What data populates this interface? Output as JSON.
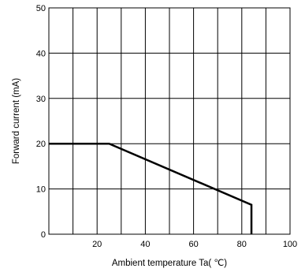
{
  "chart_data": {
    "type": "line",
    "title": "",
    "xlabel": "Ambient temperature Ta( ℃)",
    "ylabel": "Forward current (mA)",
    "xlim": [
      0,
      100
    ],
    "ylim": [
      0,
      50
    ],
    "x_ticks": [
      20,
      40,
      60,
      80,
      100
    ],
    "y_ticks": [
      0,
      10,
      20,
      30,
      40,
      50
    ],
    "x_grid_step": 10,
    "y_grid_step": 10,
    "grid": true,
    "series": [
      {
        "x": [
          0,
          25,
          84,
          84
        ],
        "y": [
          20,
          20,
          6.5,
          0
        ]
      }
    ]
  }
}
